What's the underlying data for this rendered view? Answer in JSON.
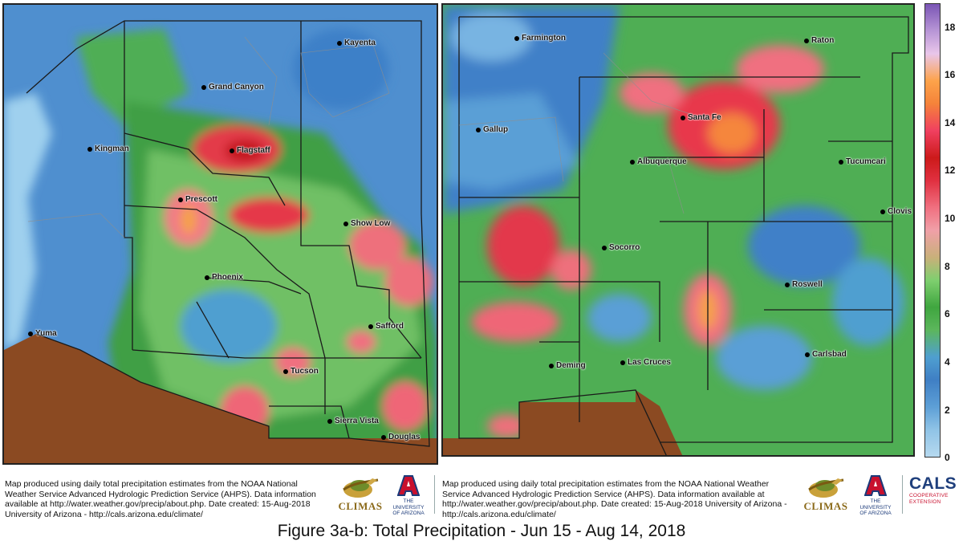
{
  "maps": {
    "arizona": {
      "cities": [
        {
          "name": "Kayenta"
        },
        {
          "name": "Grand Canyon"
        },
        {
          "name": "Kingman"
        },
        {
          "name": "Flagstaff"
        },
        {
          "name": "Prescott"
        },
        {
          "name": "Show Low"
        },
        {
          "name": "Phoenix"
        },
        {
          "name": "Yuma"
        },
        {
          "name": "Safford"
        },
        {
          "name": "Tucson"
        },
        {
          "name": "Sierra Vista"
        },
        {
          "name": "Douglas"
        }
      ]
    },
    "new_mexico": {
      "cities": [
        {
          "name": "Farmington"
        },
        {
          "name": "Raton"
        },
        {
          "name": "Santa Fe"
        },
        {
          "name": "Gallup"
        },
        {
          "name": "Albuquerque"
        },
        {
          "name": "Tucumcari"
        },
        {
          "name": "Clovis"
        },
        {
          "name": "Socorro"
        },
        {
          "name": "Roswell"
        },
        {
          "name": "Deming"
        },
        {
          "name": "Las Cruces"
        },
        {
          "name": "Carlsbad"
        }
      ]
    }
  },
  "scale": {
    "ticks": [
      "18",
      "16",
      "14",
      "12",
      "10",
      "8",
      "6",
      "4",
      "2",
      "0"
    ],
    "min": 0,
    "max": 19,
    "colors": {
      "low": "#b6d9ef",
      "mid_blue": "#3f7fc4",
      "green": "#3fa63f",
      "pink": "#f07080",
      "red": "#cc1a1a",
      "orange": "#fda34a",
      "purple": "#7a55b5"
    }
  },
  "captions": {
    "left": "Map produced using daily total precipitation estimates from the NOAA National Weather Service Advanced Hydrologic Prediction Service (AHPS). Data information available at http://water.weather.gov/precip/about.php. Date created: 15-Aug-2018 University of Arizona - http://cals.arizona.edu/climate/",
    "right": "Map produced using daily total precipitation estimates from the NOAA National Weather Service Advanced Hydrologic Prediction Service (AHPS). Data information available at http://water.weather.gov/precip/about.php. Date created: 15-Aug-2018 University of Arizona - http://cals.arizona.edu/climate/"
  },
  "logos": {
    "climas": "CLIMAS",
    "ua_line1": "THE UNIVERSITY",
    "ua_line2": "OF ARIZONA",
    "cals": "CALS",
    "cals_sub1": "COOPERATIVE",
    "cals_sub2": "EXTENSION"
  },
  "figure_title": "Figure 3a-b: Total Precipitation - Jun 15 - Aug 14, 2018"
}
